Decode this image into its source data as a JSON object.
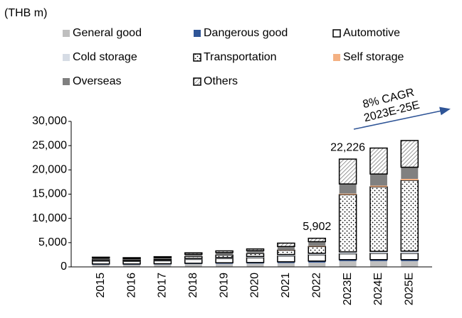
{
  "chart_data": {
    "type": "stacked_bar",
    "title": "(THB m)",
    "categories": [
      "2015",
      "2016",
      "2017",
      "2018",
      "2019",
      "2020",
      "2021",
      "2022",
      "2023E",
      "2024E",
      "2025E"
    ],
    "series": [
      {
        "name": "General good",
        "color": "#bfbfbf",
        "values": [
          450,
          450,
          500,
          600,
          650,
          700,
          800,
          900,
          1200,
          1200,
          1200
        ]
      },
      {
        "name": "Dangerous good",
        "color": "#2f5597",
        "values": [
          150,
          150,
          150,
          150,
          200,
          200,
          250,
          300,
          300,
          300,
          300
        ]
      },
      {
        "name": "Automotive",
        "color": "#ffffff",
        "outline": "#000000",
        "values": [
          600,
          550,
          600,
          800,
          900,
          1000,
          1200,
          1300,
          1200,
          1300,
          1300
        ]
      },
      {
        "name": "Cold storage",
        "color": "#d6dce5",
        "values": [
          150,
          150,
          150,
          200,
          200,
          250,
          300,
          300,
          400,
          400,
          450
        ]
      },
      {
        "name": "Transportation",
        "color": "#ffffff",
        "outline": "#000000",
        "pattern": "dots",
        "values": [
          150,
          150,
          200,
          400,
          500,
          600,
          900,
          1400,
          11800,
          13300,
          14600
        ]
      },
      {
        "name": "Self storage",
        "color": "#f4b183",
        "values": [
          0,
          0,
          0,
          0,
          0,
          0,
          50,
          100,
          200,
          250,
          300
        ]
      },
      {
        "name": "Overseas",
        "color": "#808080",
        "values": [
          300,
          250,
          300,
          450,
          500,
          600,
          700,
          900,
          2000,
          2400,
          2400
        ]
      },
      {
        "name": "Others",
        "color": "#ffffff",
        "outline": "#000000",
        "pattern": "hatch",
        "values": [
          200,
          200,
          200,
          300,
          350,
          350,
          700,
          702,
          5126,
          5350,
          5500
        ]
      }
    ],
    "ylim": [
      0,
      30000
    ],
    "yticks": [
      0,
      {
        "value": 5000,
        "label": "5,000"
      },
      {
        "value": 10000,
        "label": "10,000"
      },
      {
        "value": 15000,
        "label": "15,000"
      },
      {
        "value": 20000,
        "label": "20,000"
      },
      {
        "value": 25000,
        "label": "25,000"
      },
      {
        "value": 30000,
        "label": "30,000"
      }
    ],
    "grid": false,
    "annotations": [
      {
        "text": "5,902",
        "category": "2022"
      },
      {
        "text": "22,226",
        "category": "2023E"
      }
    ],
    "cagr_annotation": [
      "8% CAGR",
      "2023E-25E"
    ]
  }
}
